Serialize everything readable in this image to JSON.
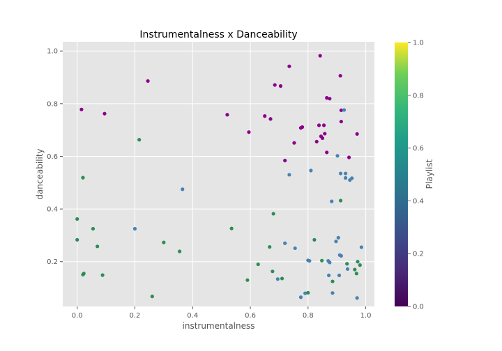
{
  "chart_data": {
    "type": "scatter",
    "title": "Instrumentalness x Danceability",
    "xlabel": "instrumentalness",
    "ylabel": "danceability",
    "xlim": [
      -0.05,
      1.03
    ],
    "ylim": [
      0.03,
      1.035
    ],
    "x_ticks": [
      0.0,
      0.2,
      0.4,
      0.6,
      0.8,
      1.0
    ],
    "x_tick_labels": [
      "0.0",
      "0.2",
      "0.4",
      "0.6",
      "0.8",
      "1.0"
    ],
    "y_ticks": [
      0.2,
      0.4,
      0.6,
      0.8,
      1.0
    ],
    "y_tick_labels": [
      "0.2",
      "0.4",
      "0.6",
      "0.8",
      "1.0"
    ],
    "grid": true,
    "background": "#e5e5e5",
    "colorbar": {
      "label": "Playlist",
      "range": [
        0.0,
        1.0
      ],
      "ticks": [
        0.0,
        0.2,
        0.4,
        0.6,
        0.8,
        1.0
      ],
      "tick_labels": [
        "0.0",
        "0.2",
        "0.4",
        "0.6",
        "0.8",
        "1.0"
      ],
      "colormap": "viridis"
    },
    "colors": {
      "0": "#8b008b",
      "1": "#4682b4",
      "2": "#2e8b57"
    },
    "points": [
      {
        "x": 0.015,
        "y": 0.778,
        "c": 0
      },
      {
        "x": 0.095,
        "y": 0.762,
        "c": 0
      },
      {
        "x": 0.245,
        "y": 0.886,
        "c": 0
      },
      {
        "x": 0.52,
        "y": 0.758,
        "c": 0
      },
      {
        "x": 0.595,
        "y": 0.692,
        "c": 0
      },
      {
        "x": 0.65,
        "y": 0.753,
        "c": 0
      },
      {
        "x": 0.67,
        "y": 0.742,
        "c": 0
      },
      {
        "x": 0.685,
        "y": 0.871,
        "c": 0
      },
      {
        "x": 0.705,
        "y": 0.867,
        "c": 0
      },
      {
        "x": 0.72,
        "y": 0.584,
        "c": 0
      },
      {
        "x": 0.735,
        "y": 0.942,
        "c": 0
      },
      {
        "x": 0.752,
        "y": 0.651,
        "c": 0
      },
      {
        "x": 0.775,
        "y": 0.708,
        "c": 0
      },
      {
        "x": 0.78,
        "y": 0.711,
        "c": 0
      },
      {
        "x": 0.83,
        "y": 0.656,
        "c": 0
      },
      {
        "x": 0.838,
        "y": 0.718,
        "c": 0
      },
      {
        "x": 0.842,
        "y": 0.982,
        "c": 0
      },
      {
        "x": 0.845,
        "y": 0.676,
        "c": 0
      },
      {
        "x": 0.85,
        "y": 0.669,
        "c": 0
      },
      {
        "x": 0.855,
        "y": 0.718,
        "c": 0
      },
      {
        "x": 0.858,
        "y": 0.686,
        "c": 0
      },
      {
        "x": 0.865,
        "y": 0.822,
        "c": 0
      },
      {
        "x": 0.865,
        "y": 0.615,
        "c": 0
      },
      {
        "x": 0.875,
        "y": 0.819,
        "c": 0
      },
      {
        "x": 0.912,
        "y": 0.906,
        "c": 0
      },
      {
        "x": 0.915,
        "y": 0.775,
        "c": 0
      },
      {
        "x": 0.915,
        "y": 0.732,
        "c": 0
      },
      {
        "x": 0.942,
        "y": 0.596,
        "c": 0
      },
      {
        "x": 0.97,
        "y": 0.685,
        "c": 0
      },
      {
        "x": 0.2,
        "y": 0.325,
        "c": 1
      },
      {
        "x": 0.365,
        "y": 0.475,
        "c": 1
      },
      {
        "x": 0.695,
        "y": 0.134,
        "c": 1
      },
      {
        "x": 0.72,
        "y": 0.27,
        "c": 1
      },
      {
        "x": 0.735,
        "y": 0.53,
        "c": 1
      },
      {
        "x": 0.755,
        "y": 0.251,
        "c": 1
      },
      {
        "x": 0.775,
        "y": 0.065,
        "c": 1
      },
      {
        "x": 0.79,
        "y": 0.08,
        "c": 1
      },
      {
        "x": 0.8,
        "y": 0.205,
        "c": 1
      },
      {
        "x": 0.805,
        "y": 0.203,
        "c": 1
      },
      {
        "x": 0.81,
        "y": 0.546,
        "c": 1
      },
      {
        "x": 0.87,
        "y": 0.203,
        "c": 1
      },
      {
        "x": 0.872,
        "y": 0.148,
        "c": 1
      },
      {
        "x": 0.875,
        "y": 0.197,
        "c": 1
      },
      {
        "x": 0.882,
        "y": 0.429,
        "c": 1
      },
      {
        "x": 0.885,
        "y": 0.081,
        "c": 1
      },
      {
        "x": 0.897,
        "y": 0.277,
        "c": 1
      },
      {
        "x": 0.902,
        "y": 0.602,
        "c": 1
      },
      {
        "x": 0.905,
        "y": 0.291,
        "c": 1
      },
      {
        "x": 0.908,
        "y": 0.148,
        "c": 1
      },
      {
        "x": 0.91,
        "y": 0.225,
        "c": 1
      },
      {
        "x": 0.913,
        "y": 0.535,
        "c": 1
      },
      {
        "x": 0.915,
        "y": 0.222,
        "c": 1
      },
      {
        "x": 0.925,
        "y": 0.776,
        "c": 1
      },
      {
        "x": 0.93,
        "y": 0.518,
        "c": 1
      },
      {
        "x": 0.93,
        "y": 0.535,
        "c": 1
      },
      {
        "x": 0.937,
        "y": 0.172,
        "c": 1
      },
      {
        "x": 0.945,
        "y": 0.51,
        "c": 1
      },
      {
        "x": 0.952,
        "y": 0.517,
        "c": 1
      },
      {
        "x": 0.97,
        "y": 0.062,
        "c": 1
      },
      {
        "x": 0.985,
        "y": 0.255,
        "c": 1
      },
      {
        "x": 0.0,
        "y": 0.362,
        "c": 2
      },
      {
        "x": 0.0,
        "y": 0.283,
        "c": 2
      },
      {
        "x": 0.02,
        "y": 0.519,
        "c": 2
      },
      {
        "x": 0.02,
        "y": 0.151,
        "c": 2
      },
      {
        "x": 0.023,
        "y": 0.155,
        "c": 2
      },
      {
        "x": 0.055,
        "y": 0.325,
        "c": 2
      },
      {
        "x": 0.07,
        "y": 0.258,
        "c": 2
      },
      {
        "x": 0.088,
        "y": 0.149,
        "c": 2
      },
      {
        "x": 0.215,
        "y": 0.663,
        "c": 2
      },
      {
        "x": 0.26,
        "y": 0.068,
        "c": 2
      },
      {
        "x": 0.3,
        "y": 0.273,
        "c": 2
      },
      {
        "x": 0.355,
        "y": 0.239,
        "c": 2
      },
      {
        "x": 0.535,
        "y": 0.326,
        "c": 2
      },
      {
        "x": 0.59,
        "y": 0.13,
        "c": 2
      },
      {
        "x": 0.627,
        "y": 0.19,
        "c": 2
      },
      {
        "x": 0.667,
        "y": 0.256,
        "c": 2
      },
      {
        "x": 0.677,
        "y": 0.163,
        "c": 2
      },
      {
        "x": 0.68,
        "y": 0.382,
        "c": 2
      },
      {
        "x": 0.71,
        "y": 0.136,
        "c": 2
      },
      {
        "x": 0.8,
        "y": 0.082,
        "c": 2
      },
      {
        "x": 0.822,
        "y": 0.283,
        "c": 2
      },
      {
        "x": 0.848,
        "y": 0.204,
        "c": 2
      },
      {
        "x": 0.885,
        "y": 0.125,
        "c": 2
      },
      {
        "x": 0.913,
        "y": 0.432,
        "c": 2
      },
      {
        "x": 0.935,
        "y": 0.192,
        "c": 2
      },
      {
        "x": 0.962,
        "y": 0.17,
        "c": 2
      },
      {
        "x": 0.968,
        "y": 0.155,
        "c": 2
      },
      {
        "x": 0.972,
        "y": 0.2,
        "c": 2
      },
      {
        "x": 0.98,
        "y": 0.187,
        "c": 2
      }
    ]
  }
}
